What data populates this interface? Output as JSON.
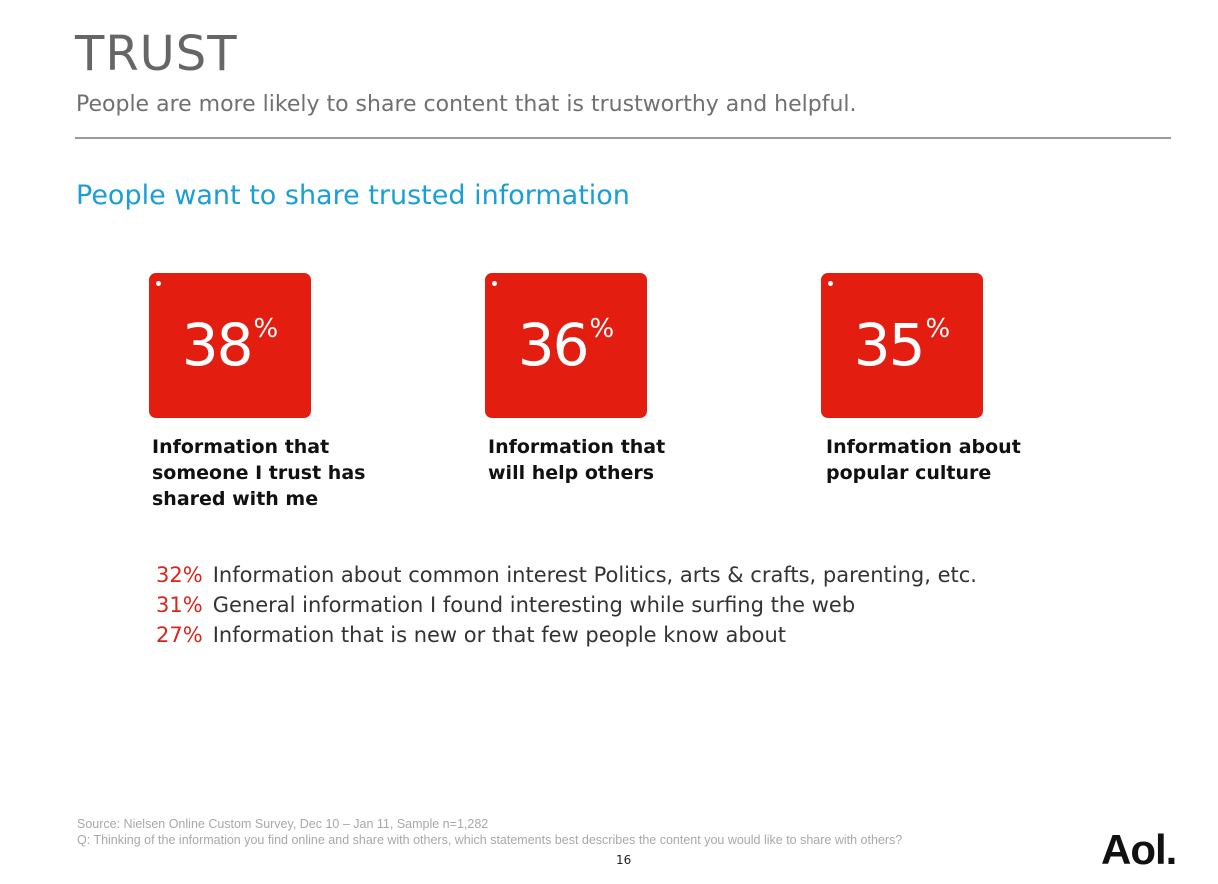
{
  "header": {
    "title": "TRUST",
    "subtitle": "People are more likely to share content that is trustworthy and helpful."
  },
  "section_heading": "People want to share trusted information",
  "stats": [
    {
      "value": "38",
      "unit": "%",
      "caption_lines": [
        "Information that",
        "someone I trust has",
        "shared with me"
      ]
    },
    {
      "value": "36",
      "unit": "%",
      "caption_lines": [
        "Information that",
        "will help others"
      ]
    },
    {
      "value": "35",
      "unit": "%",
      "caption_lines": [
        "Information about",
        "popular culture"
      ]
    }
  ],
  "list": [
    {
      "percent": "32%",
      "text": "Information about common interest Politics, arts & crafts, parenting, etc."
    },
    {
      "percent": "31%",
      "text": "General information I found interesting while surfing the web"
    },
    {
      "percent": "27%",
      "text": "Information that is new or that few people know about"
    }
  ],
  "footer": {
    "source": "Source: Nielsen Online Custom Survey, Dec 10 – Jan 11, Sample n=1,282",
    "question": "Q: Thinking of the information you find online and share with others, which statements best describes the content you would like to share with others?",
    "page_number": "16",
    "logo": "Aol."
  },
  "colors": {
    "accent_red": "#e31e10",
    "heading_blue": "#1a9ed6",
    "list_percent_red": "#d9261c"
  }
}
